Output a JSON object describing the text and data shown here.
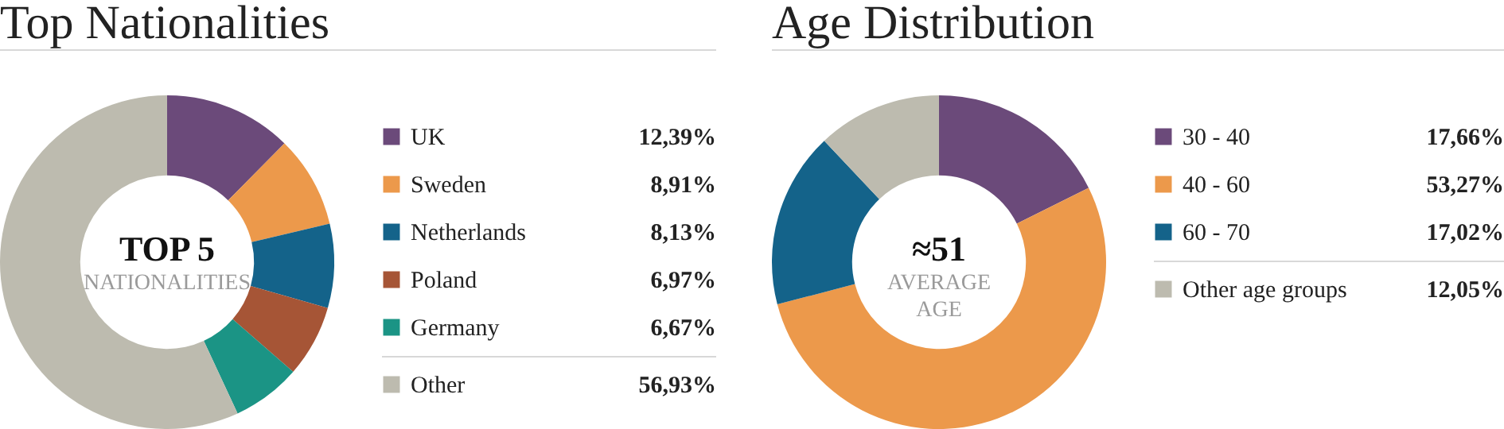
{
  "chart_data": [
    {
      "type": "donut",
      "title": "Top Nationalities",
      "legend": "right",
      "annotations": [
        "TOP 5",
        "NATIONALITIES"
      ],
      "categories": [
        "UK",
        "Sweden",
        "Netherlands",
        "Poland",
        "Germany",
        "Other"
      ],
      "values": [
        12.39,
        8.91,
        8.13,
        6.97,
        6.67,
        56.93
      ],
      "value_labels": [
        "12,39%",
        "8,91%",
        "8,13%",
        "6,97%",
        "6,67%",
        "56,93%"
      ],
      "colors": [
        "#6b4a7a",
        "#ec994b",
        "#14638a",
        "#a65536",
        "#1b9485",
        "#bdbbaf"
      ]
    },
    {
      "type": "donut",
      "title": "Age Distribution",
      "legend": "right",
      "annotations": [
        "≈51",
        "AVERAGE AGE"
      ],
      "categories": [
        "30 - 40",
        "40 - 60",
        "60 - 70",
        "Other age groups"
      ],
      "values": [
        17.66,
        53.27,
        17.02,
        12.05
      ],
      "value_labels": [
        "17,66%",
        "53,27%",
        "17,02%",
        "12,05%"
      ],
      "colors": [
        "#6b4a7a",
        "#ec994b",
        "#14638a",
        "#bdbbaf"
      ]
    }
  ]
}
